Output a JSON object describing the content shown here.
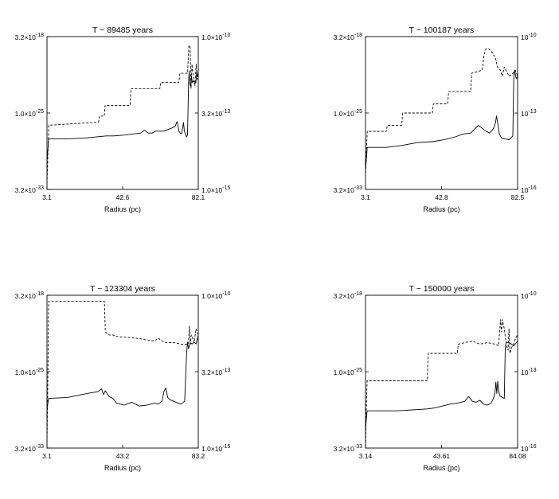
{
  "figure": {
    "panels": [
      {
        "title": "T ~ 89485 years",
        "xlabel": "Radius (pc)",
        "x_ticks": [
          "3.1",
          "42.6",
          "82.1"
        ],
        "y_left_ticks": [
          {
            "mant": "3.2×10",
            "exp": "-18"
          },
          {
            "mant": "1.0×10",
            "exp": "-25"
          },
          {
            "mant": "3.2×10",
            "exp": "-33"
          }
        ],
        "y_right_ticks": [
          {
            "mant": "1.0×10",
            "exp": "-10"
          },
          {
            "mant": "3.2×10",
            "exp": "-13"
          },
          {
            "mant": "1.0×10",
            "exp": "-15"
          }
        ]
      },
      {
        "title": "T ~ 100187 years",
        "xlabel": "Radius (pc)",
        "x_ticks": [
          "3.1",
          "42.8",
          "82.5"
        ],
        "y_left_ticks": [
          {
            "mant": "3.2×10",
            "exp": "-18"
          },
          {
            "mant": "1.0×10",
            "exp": "-25"
          },
          {
            "mant": "3.2×10",
            "exp": "-33"
          }
        ],
        "y_right_ticks": [
          {
            "mant": "10",
            "exp": "-10"
          },
          {
            "mant": "10",
            "exp": "-13"
          },
          {
            "mant": "10",
            "exp": "-16"
          }
        ]
      },
      {
        "title": "T ~ 123304 years",
        "xlabel": "Radius (pc)",
        "x_ticks": [
          "3.1",
          "43.2",
          "83.2"
        ],
        "y_left_ticks": [
          {
            "mant": "3.2×10",
            "exp": "-18"
          },
          {
            "mant": "1.0×10",
            "exp": "-25"
          },
          {
            "mant": "3.2×10",
            "exp": "-33"
          }
        ],
        "y_right_ticks": [
          {
            "mant": "1.0×10",
            "exp": "-10"
          },
          {
            "mant": "3.2×10",
            "exp": "-13"
          },
          {
            "mant": "1.0×10",
            "exp": "-15"
          }
        ]
      },
      {
        "title": "T ~ 150000 years",
        "xlabel": "Radius (pc)",
        "x_ticks": [
          "3.14",
          "43.61",
          "84.08"
        ],
        "y_left_ticks": [
          {
            "mant": "3.2×10",
            "exp": "-18"
          },
          {
            "mant": "1.0×10",
            "exp": "-25"
          },
          {
            "mant": "3.2×10",
            "exp": "-33"
          }
        ],
        "y_right_ticks": [
          {
            "mant": "10",
            "exp": "-10"
          },
          {
            "mant": "10",
            "exp": "-13"
          },
          {
            "mant": "10",
            "exp": "-16"
          }
        ]
      }
    ]
  },
  "chart_data": [
    {
      "type": "line",
      "title": "T ~ 89485 years",
      "xlabel": "Radius (pc)",
      "xlim": [
        3.1,
        82.1
      ],
      "y_left_scale": "log",
      "y_right_scale": "log",
      "y_left_ticks": [
        "3.2×10^-18",
        "1.0×10^-25",
        "3.2×10^-33"
      ],
      "y_right_ticks": [
        "1.0×10^-10",
        "3.2×10^-13",
        "1.0×10^-15"
      ],
      "grid": false,
      "series": [
        {
          "style": "dashed",
          "axis": "right",
          "x": [
            3.1,
            3.5,
            4,
            30,
            30.5,
            33,
            33.5,
            46.5,
            47,
            62,
            62.5,
            72,
            72.5,
            76.5,
            77.2,
            77.8,
            78.3,
            78.8,
            79.5,
            80.3,
            81,
            81.6,
            82.1
          ],
          "y_log10": [
            -14.8,
            -14,
            -12.9,
            -12.8,
            -12.6,
            -12.6,
            -12.25,
            -12.25,
            -11.7,
            -11.7,
            -11.5,
            -11.5,
            -11.2,
            -11.2,
            -10.3,
            -10.3,
            -11.7,
            -10.9,
            -11.3,
            -11.6,
            -10.9,
            -11.4,
            -11.2
          ]
        },
        {
          "style": "solid",
          "axis": "left",
          "x": [
            3.1,
            4,
            14,
            24,
            34,
            38,
            44,
            52,
            54,
            56,
            58,
            60,
            64,
            68,
            70,
            71,
            71.5,
            72,
            73,
            73.5,
            74,
            74.4,
            74.8,
            75.5,
            76,
            76.5,
            77,
            77.3,
            77.7,
            78.2,
            78.5,
            79,
            79.6,
            80.2,
            80.8,
            81.3,
            81.7,
            82.1
          ],
          "y_log10": [
            -30.5,
            -28.2,
            -28.2,
            -28.1,
            -27.9,
            -27.9,
            -27.8,
            -27.6,
            -27.3,
            -27.6,
            -27.6,
            -27.4,
            -27.4,
            -27.1,
            -26.9,
            -26.4,
            -26.8,
            -27.4,
            -27.7,
            -27.6,
            -27.0,
            -26.5,
            -27.3,
            -27.8,
            -28.0,
            -27.8,
            -22.6,
            -21.1,
            -22.5,
            -22.7,
            -21.6,
            -22.3,
            -22.1,
            -22.4,
            -22.3,
            -21.2,
            -21.7,
            -21.4
          ]
        }
      ]
    },
    {
      "type": "line",
      "title": "T ~ 100187 years",
      "xlabel": "Radius (pc)",
      "xlim": [
        3.1,
        82.5
      ],
      "y_left_scale": "log",
      "y_right_scale": "log",
      "y_left_ticks": [
        "3.2×10^-18",
        "1.0×10^-25",
        "3.2×10^-33"
      ],
      "y_right_ticks": [
        "10^-10",
        "10^-13",
        "10^-16"
      ],
      "grid": false,
      "series": [
        {
          "style": "dashed",
          "axis": "right",
          "x": [
            3.1,
            3.5,
            4,
            14,
            14.5,
            22,
            22.5,
            38,
            38.5,
            46,
            46.5,
            58,
            58.5,
            64,
            65,
            66,
            67.5,
            69,
            70,
            71,
            72,
            73.5,
            74.5,
            75.5,
            76.5,
            78,
            80,
            81.3,
            82.5
          ],
          "y_log10": [
            -14.6,
            -13.8,
            -13.1,
            -13.1,
            -12.9,
            -12.9,
            -12.5,
            -12.5,
            -12.2,
            -12.2,
            -11.8,
            -11.8,
            -11.2,
            -11.1,
            -10.6,
            -10.4,
            -10.4,
            -10.5,
            -10.6,
            -10.7,
            -11.0,
            -11.1,
            -11.3,
            -11.0,
            -11.1,
            -11.3,
            -11.2,
            -11.1,
            -11.3
          ]
        },
        {
          "style": "solid",
          "axis": "left",
          "x": [
            3.1,
            4,
            14,
            22,
            30,
            38,
            44,
            50,
            54,
            58,
            60,
            62,
            64,
            66,
            68,
            70,
            71,
            71.5,
            72,
            72.5,
            73,
            74,
            76,
            78,
            80,
            80.5,
            81,
            81.5,
            82,
            82.5
          ],
          "y_log10": [
            -31.5,
            -29.1,
            -29.1,
            -28.9,
            -28.6,
            -28.5,
            -28.3,
            -28.0,
            -27.7,
            -27.6,
            -27.2,
            -26.8,
            -27.1,
            -27.4,
            -27.6,
            -27.1,
            -26.5,
            -25.8,
            -26.4,
            -27.0,
            -27.7,
            -28.1,
            -28.2,
            -28.3,
            -27.9,
            -21.8,
            -21.0,
            -21.7,
            -21.9,
            -21.6
          ]
        }
      ]
    },
    {
      "type": "line",
      "title": "T ~ 123304 years",
      "xlabel": "Radius (pc)",
      "xlim": [
        3.1,
        83.2
      ],
      "y_left_scale": "log",
      "y_right_scale": "log",
      "y_left_ticks": [
        "3.2×10^-18",
        "1.0×10^-25",
        "3.2×10^-33"
      ],
      "y_right_ticks": [
        "1.0×10^-10",
        "3.2×10^-13",
        "1.0×10^-15"
      ],
      "grid": false,
      "series": [
        {
          "style": "dashed",
          "axis": "right",
          "x": [
            3.1,
            3.5,
            4,
            20,
            33.5,
            34,
            36,
            38,
            40,
            50,
            60,
            62,
            64,
            66,
            70,
            74,
            78,
            78.5,
            79,
            79.5,
            80.2,
            81,
            82,
            83.2
          ],
          "y_log10": [
            -14.8,
            -13.2,
            -10.2,
            -10.2,
            -10.2,
            -11.2,
            -11.3,
            -11.3,
            -11.35,
            -11.4,
            -11.5,
            -11.4,
            -11.5,
            -11.55,
            -11.55,
            -11.6,
            -11.6,
            -11.0,
            -11.6,
            -11.3,
            -11.4,
            -11.55,
            -11.1,
            -11.3
          ]
        },
        {
          "style": "solid",
          "axis": "left",
          "x": [
            3.1,
            4,
            14,
            24,
            30,
            32,
            33,
            34,
            36,
            38,
            40,
            44,
            48,
            52,
            56,
            60,
            62,
            64,
            65,
            66,
            67,
            68,
            70,
            74,
            76,
            77,
            77.5,
            78,
            79,
            80,
            81,
            82,
            83.2
          ],
          "y_log10": [
            -29.4,
            -28.3,
            -28.2,
            -27.8,
            -27.6,
            -27.3,
            -27.9,
            -27.5,
            -28.1,
            -28.3,
            -28.8,
            -29.0,
            -28.7,
            -29.1,
            -29.0,
            -28.8,
            -28.9,
            -28.6,
            -27.6,
            -27.2,
            -28.2,
            -28.4,
            -28.6,
            -28.9,
            -28.6,
            -23.6,
            -22.4,
            -23.1,
            -22.5,
            -22.6,
            -22.4,
            -22.6,
            -21.7
          ]
        }
      ]
    },
    {
      "type": "line",
      "title": "T ~ 150000 years",
      "xlabel": "Radius (pc)",
      "xlim": [
        3.14,
        84.08
      ],
      "y_left_scale": "log",
      "y_right_scale": "log",
      "y_left_ticks": [
        "3.2×10^-18",
        "1.0×10^-25",
        "3.2×10^-33"
      ],
      "y_right_ticks": [
        "10^-10",
        "10^-13",
        "10^-16"
      ],
      "grid": false,
      "series": [
        {
          "style": "dashed",
          "axis": "right",
          "x": [
            3.14,
            3.5,
            4,
            36,
            36.5,
            52,
            52.5,
            56,
            60,
            64,
            68,
            72,
            74,
            75,
            75.5,
            76,
            77,
            78,
            79,
            79.5,
            80,
            81,
            82,
            83,
            84.08
          ],
          "y_log10": [
            -15.2,
            -13.8,
            -12.8,
            -12.8,
            -11.9,
            -11.9,
            -11.6,
            -11.55,
            -11.5,
            -11.6,
            -11.55,
            -11.6,
            -11.65,
            -10.8,
            -11.2,
            -10.8,
            -11.1,
            -11.6,
            -11.8,
            -11.1,
            -11.9,
            -11.7,
            -11.6,
            -11.4,
            -11.3
          ]
        },
        {
          "style": "solid",
          "axis": "left",
          "x": [
            3.14,
            4,
            20,
            36,
            40,
            44,
            48,
            52,
            56,
            58,
            60,
            62,
            64,
            66,
            68,
            70,
            71,
            72,
            72.5,
            73,
            73.5,
            74,
            74.5,
            76,
            77,
            77.5,
            78,
            80,
            82,
            84.08
          ],
          "y_log10": [
            -31.5,
            -29.6,
            -29.6,
            -29.4,
            -29.3,
            -29.1,
            -28.9,
            -28.8,
            -28.6,
            -28.1,
            -28.6,
            -28.7,
            -28.5,
            -28.9,
            -29.0,
            -28.8,
            -28.4,
            -27.8,
            -26.6,
            -27.8,
            -26.5,
            -27.4,
            -28.0,
            -28.2,
            -28.3,
            -23.0,
            -22.4,
            -22.5,
            -22.8,
            -22.3
          ]
        }
      ]
    }
  ]
}
